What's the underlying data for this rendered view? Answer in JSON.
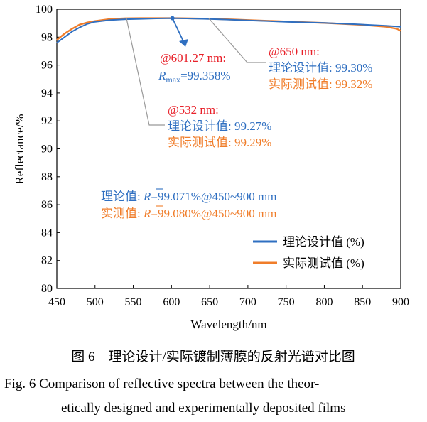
{
  "chart_data": {
    "type": "line",
    "xlabel": "Wavelength/nm",
    "ylabel": "Reflectance/%",
    "xlim": [
      450,
      900
    ],
    "ylim": [
      80,
      100
    ],
    "xticks": [
      "450",
      "500",
      "550",
      "600",
      "650",
      "700",
      "750",
      "800",
      "850",
      "900"
    ],
    "yticks": [
      "80",
      "82",
      "84",
      "86",
      "88",
      "90",
      "92",
      "94",
      "96",
      "98",
      "100"
    ],
    "grid": false,
    "legend_position": "bottom-right",
    "series": [
      {
        "name": "理论设计值 (%)",
        "color": "#2f6fc1",
        "x": [
          450,
          460,
          470,
          480,
          490,
          500,
          520,
          540,
          560,
          580,
          601.27,
          620,
          650,
          680,
          700,
          750,
          800,
          850,
          880,
          900
        ],
        "y": [
          97.6,
          98.0,
          98.4,
          98.7,
          98.95,
          99.1,
          99.22,
          99.28,
          99.31,
          99.34,
          99.358,
          99.34,
          99.3,
          99.24,
          99.2,
          99.1,
          99.02,
          98.9,
          98.82,
          98.75
        ]
      },
      {
        "name": "实际测试值 (%)",
        "color": "#f07d2a",
        "x": [
          450,
          460,
          470,
          480,
          490,
          500,
          520,
          540,
          560,
          580,
          601.27,
          620,
          650,
          680,
          700,
          750,
          800,
          850,
          880,
          895,
          900
        ],
        "y": [
          97.8,
          98.25,
          98.6,
          98.9,
          99.05,
          99.15,
          99.3,
          99.35,
          99.36,
          99.36,
          99.36,
          99.35,
          99.32,
          99.26,
          99.22,
          99.12,
          99.02,
          98.88,
          98.75,
          98.6,
          98.45
        ]
      }
    ],
    "annotations": {
      "max_point": {
        "x": 601.27,
        "y": 99.358
      },
      "max_at": "@601.27 nm:",
      "max_r": "R",
      "max_sub": "max",
      "max_val": "=99.358%",
      "at650": "@650 nm:",
      "at650_design": "理论设计值: 99.30%",
      "at650_test": "实际测试值: 99.32%",
      "at532": "@532 nm:",
      "at532_design": "理论设计值: 99.27%",
      "at532_test": "实际测试值: 99.29%",
      "avg_design_prefix": "理论值: ",
      "avg_design_r": "R",
      "avg_design_rest": "=99.071%@450~900 mm",
      "avg_test_prefix": "实测值: ",
      "avg_test_r": "R",
      "avg_test_rest": "=99.080%@450~900 mm"
    }
  },
  "caption": {
    "cn": "图 6　理论设计/实际镀制薄膜的反射光谱对比图",
    "en_line1": "Fig. 6   Comparison of reflective spectra between the theor-",
    "en_line2": "etically designed and experimentally deposited films"
  }
}
